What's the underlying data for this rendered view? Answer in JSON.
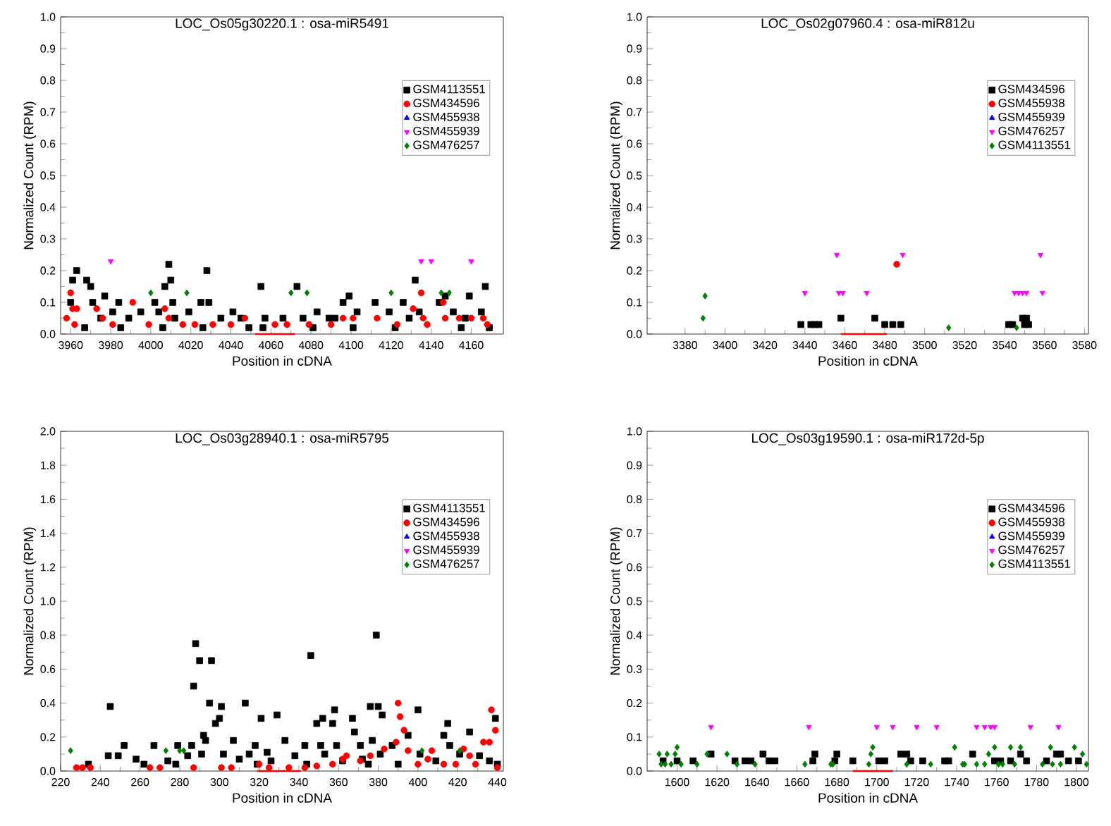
{
  "chart_data": [
    {
      "type": "scatter",
      "title": "LOC_Os05g30220.1 : osa-miR5491",
      "xlabel": "Position in cDNA",
      "ylabel": "Normalized Count (RPM)",
      "xlim": [
        3955,
        4176
      ],
      "ylim": [
        0,
        1.0
      ],
      "xticks": [
        3960,
        3980,
        4000,
        4020,
        4040,
        4060,
        4080,
        4100,
        4120,
        4140,
        4160
      ],
      "yticks": [
        {
          "value": 0,
          "label": "0.0"
        },
        {
          "value": 0.1,
          "label": "0.1"
        },
        {
          "value": 0.2,
          "label": "0.2"
        },
        {
          "value": 0.3,
          "label": "0.3"
        },
        {
          "value": 0.4,
          "label": "0.4"
        },
        {
          "value": 0.5,
          "label": "0.5"
        },
        {
          "value": 0.6,
          "label": "0.6"
        },
        {
          "value": 0.7,
          "label": "0.7"
        },
        {
          "value": 0.8,
          "label": "0.8"
        },
        {
          "value": 0.9,
          "label": "0.9"
        },
        {
          "value": 1.0,
          "label": "1.0"
        }
      ],
      "legend": "top right",
      "series": [
        {
          "type": "line",
          "color": "#ff0000",
          "marker": "none",
          "x": [
            4052,
            4072
          ],
          "values": [
            0,
            0
          ]
        },
        {
          "name": "GSM4113551",
          "color": "#000000",
          "marker": "square",
          "x": [
            3961,
            3963,
            3960,
            3968,
            3970,
            3971,
            3977,
            3981,
            3984,
            3989,
            3995,
            4002,
            4004,
            4007,
            4009,
            4010,
            4011,
            4019,
            4025,
            4028,
            4029,
            4035,
            4041,
            4049,
            4055,
            4057,
            4066,
            4073,
            4076,
            4083,
            4089,
            4096,
            4099,
            4103,
            4112,
            4119,
            4126,
            4132,
            4134,
            4144,
            4147,
            4151,
            4159,
            4165,
            4167,
            3967,
            3985,
            4006,
            4026,
            4056,
            4081,
            4101,
            4122,
            4155,
            4169,
            3975,
            4012,
            4045,
            4092,
            4129,
            4157
          ],
          "values": [
            0.17,
            0.2,
            0.1,
            0.17,
            0.15,
            0.1,
            0.12,
            0.07,
            0.1,
            0.05,
            0.07,
            0.1,
            0.07,
            0.15,
            0.22,
            0.17,
            0.1,
            0.07,
            0.1,
            0.2,
            0.1,
            0.05,
            0.07,
            0.02,
            0.15,
            0.05,
            0.05,
            0.15,
            0.05,
            0.07,
            0.05,
            0.1,
            0.12,
            0.07,
            0.1,
            0.07,
            0.1,
            0.17,
            0.07,
            0.1,
            0.12,
            0.07,
            0.12,
            0.07,
            0.15,
            0.02,
            0.02,
            0.02,
            0.02,
            0.02,
            0.02,
            0.02,
            0.02,
            0.02,
            0.02,
            0.05,
            0.05,
            0.05,
            0.05,
            0.05,
            0.05
          ]
        },
        {
          "name": "GSM434596",
          "color": "#ff0000",
          "marker": "circle",
          "x": [
            3960,
            3961,
            3963,
            3958,
            3962,
            3973,
            3976,
            3981,
            3991,
            3999,
            4007,
            4009,
            4016,
            4022,
            4031,
            4040,
            4047,
            4062,
            4068,
            4079,
            4090,
            4096,
            4101,
            4113,
            4123,
            4131,
            4135,
            4136,
            4138,
            4146,
            4147,
            4154,
            4160,
            4166,
            4168
          ],
          "values": [
            0.13,
            0.08,
            0.08,
            0.05,
            0.03,
            0.08,
            0.05,
            0.03,
            0.1,
            0.03,
            0.08,
            0.05,
            0.03,
            0.03,
            0.03,
            0.03,
            0.05,
            0.03,
            0.03,
            0.03,
            0.03,
            0.05,
            0.05,
            0.05,
            0.03,
            0.08,
            0.13,
            0.05,
            0.03,
            0.1,
            0.05,
            0.05,
            0.05,
            0.05,
            0.03
          ]
        },
        {
          "name": "GSM455938",
          "color": "#0000ff",
          "marker": "triangle"
        },
        {
          "name": "GSM455939",
          "color": "#ff00ff",
          "marker": "triangle-down",
          "x": [
            3980,
            4135,
            4140,
            4160
          ],
          "values": [
            0.23,
            0.23,
            0.23,
            0.23
          ]
        },
        {
          "name": "GSM476257",
          "color": "#008000",
          "marker": "diamond",
          "x": [
            4000,
            4018,
            4070,
            4078,
            4120,
            4145,
            4149
          ],
          "values": [
            0.13,
            0.13,
            0.13,
            0.13,
            0.13,
            0.13,
            0.13
          ]
        }
      ]
    },
    {
      "type": "scatter",
      "title": "LOC_Os02g07960.4 : osa-miR812u",
      "xlabel": "Position in cDNA",
      "ylabel": "Normalized Count (RPM)",
      "xlim": [
        3361,
        3582
      ],
      "ylim": [
        0,
        1.0
      ],
      "xticks": [
        3380,
        3400,
        3420,
        3440,
        3460,
        3480,
        3500,
        3520,
        3540,
        3560,
        3580
      ],
      "yticks": [
        {
          "value": 0,
          "label": "0.0"
        },
        {
          "value": 0.1,
          "label": "0.1"
        },
        {
          "value": 0.2,
          "label": "0.2"
        },
        {
          "value": 0.3,
          "label": "0.3"
        },
        {
          "value": 0.4,
          "label": "0.4"
        },
        {
          "value": 0.5,
          "label": "0.5"
        },
        {
          "value": 0.6,
          "label": "0.6"
        },
        {
          "value": 0.7,
          "label": "0.7"
        },
        {
          "value": 0.8,
          "label": "0.8"
        },
        {
          "value": 0.9,
          "label": "0.9"
        },
        {
          "value": 1.0,
          "label": "1.0"
        }
      ],
      "legend": "top right",
      "series": [
        {
          "type": "line",
          "color": "#ff0000",
          "marker": "none",
          "x": [
            3458,
            3481
          ],
          "values": [
            0,
            0
          ]
        },
        {
          "name": "GSM434596",
          "color": "#000000",
          "marker": "square",
          "x": [
            3438,
            3443,
            3445,
            3447,
            3458,
            3475,
            3480,
            3484,
            3488,
            3542,
            3544,
            3549,
            3551,
            3550,
            3552
          ],
          "values": [
            0.03,
            0.03,
            0.03,
            0.03,
            0.05,
            0.05,
            0.03,
            0.03,
            0.03,
            0.03,
            0.03,
            0.05,
            0.05,
            0.03,
            0.03
          ]
        },
        {
          "name": "GSM455938",
          "color": "#ff0000",
          "marker": "circle",
          "x": [
            3486
          ],
          "values": [
            0.22
          ]
        },
        {
          "name": "GSM455939",
          "color": "#0000ff",
          "marker": "triangle"
        },
        {
          "name": "GSM476257",
          "color": "#ff00ff",
          "marker": "triangle-down",
          "x": [
            3440,
            3456,
            3457,
            3459,
            3471,
            3489,
            3545,
            3547,
            3549,
            3551,
            3558,
            3559
          ],
          "values": [
            0.13,
            0.25,
            0.13,
            0.13,
            0.13,
            0.25,
            0.13,
            0.13,
            0.13,
            0.13,
            0.25,
            0.13
          ]
        },
        {
          "name": "GSM4113551",
          "color": "#008000",
          "marker": "diamond",
          "x": [
            3390,
            3389,
            3512,
            3546
          ],
          "values": [
            0.12,
            0.05,
            0.02,
            0.02
          ]
        }
      ]
    },
    {
      "type": "scatter",
      "title": "LOC_Os03g28940.1 : osa-miR5795",
      "xlabel": "Position in cDNA",
      "ylabel": "Normalized Count (RPM)",
      "xlim": [
        220,
        443
      ],
      "ylim": [
        0,
        2.0
      ],
      "xticks": [
        220,
        240,
        260,
        280,
        300,
        320,
        340,
        360,
        380,
        400,
        420,
        440
      ],
      "yticks": [
        {
          "value": 0,
          "label": "0.0"
        },
        {
          "value": 0.2,
          "label": "0.2"
        },
        {
          "value": 0.4,
          "label": "0.4"
        },
        {
          "value": 0.6,
          "label": "0.6"
        },
        {
          "value": 0.8,
          "label": "0.8"
        },
        {
          "value": 1.0,
          "label": "1.0"
        },
        {
          "value": 1.2,
          "label": "1.2"
        },
        {
          "value": 1.4,
          "label": "1.4"
        },
        {
          "value": 1.6,
          "label": "1.6"
        },
        {
          "value": 1.8,
          "label": "1.8"
        },
        {
          "value": 2.0,
          "label": "2.0"
        }
      ],
      "legend": "top right",
      "series": [
        {
          "type": "line",
          "color": "#ff0000",
          "marker": "none",
          "x": [
            319,
            341
          ],
          "values": [
            0,
            0
          ]
        },
        {
          "name": "GSM4113551",
          "color": "#000000",
          "marker": "square",
          "x": [
            288,
            290,
            296,
            287,
            346,
            379,
            245,
            295,
            301,
            313,
            321,
            329,
            298,
            300,
            349,
            352,
            357,
            358,
            367,
            368,
            376,
            380,
            382,
            400,
            415,
            426,
            439,
            292,
            293,
            307,
            333,
            343,
            252,
            267,
            279,
            286,
            318,
            324,
            351,
            359,
            371,
            377,
            387,
            395,
            413,
            416,
            234,
            244,
            249,
            258,
            262,
            274,
            284,
            291,
            302,
            310,
            315,
            326,
            338,
            344,
            353,
            362,
            372,
            381,
            390,
            401,
            409,
            421,
            431,
            436,
            440,
            278,
            319,
            375
          ],
          "values": [
            0.75,
            0.65,
            0.65,
            0.5,
            0.68,
            0.8,
            0.38,
            0.4,
            0.38,
            0.4,
            0.31,
            0.33,
            0.28,
            0.31,
            0.28,
            0.31,
            0.28,
            0.36,
            0.31,
            0.23,
            0.38,
            0.38,
            0.33,
            0.36,
            0.28,
            0.23,
            0.31,
            0.21,
            0.18,
            0.18,
            0.18,
            0.15,
            0.15,
            0.15,
            0.15,
            0.15,
            0.15,
            0.11,
            0.15,
            0.15,
            0.15,
            0.18,
            0.15,
            0.21,
            0.21,
            0.15,
            0.04,
            0.09,
            0.09,
            0.07,
            0.04,
            0.06,
            0.09,
            0.1,
            0.1,
            0.07,
            0.1,
            0.06,
            0.09,
            0.04,
            0.1,
            0.06,
            0.07,
            0.1,
            0.04,
            0.1,
            0.06,
            0.1,
            0.09,
            0.06,
            0.04,
            0.04,
            0.04,
            0.04
          ]
        },
        {
          "name": "GSM434596",
          "color": "#ff0000",
          "marker": "circle",
          "x": [
            228,
            231,
            235,
            265,
            270,
            287,
            301,
            306,
            320,
            325,
            335,
            343,
            349,
            357,
            362,
            364,
            371,
            376,
            383,
            390,
            391,
            393,
            389,
            395,
            400,
            405,
            407,
            413,
            419,
            423,
            426,
            429,
            433,
            436,
            437,
            439,
            440
          ],
          "values": [
            0.02,
            0.02,
            0.02,
            0.02,
            0.02,
            0.02,
            0.02,
            0.02,
            0.04,
            0.02,
            0.02,
            0.02,
            0.03,
            0.04,
            0.07,
            0.09,
            0.06,
            0.09,
            0.13,
            0.4,
            0.32,
            0.24,
            0.17,
            0.12,
            0.04,
            0.07,
            0.12,
            0.04,
            0.04,
            0.13,
            0.09,
            0.04,
            0.17,
            0.17,
            0.36,
            0.24,
            0.02
          ]
        },
        {
          "name": "GSM455938",
          "color": "#0000ff",
          "marker": "triangle"
        },
        {
          "name": "GSM455939",
          "color": "#ff00ff",
          "marker": "triangle-down"
        },
        {
          "name": "GSM476257",
          "color": "#008000",
          "marker": "diamond",
          "x": [
            225,
            273,
            280,
            282,
            402,
            421
          ],
          "values": [
            0.12,
            0.12,
            0.12,
            0.12,
            0.12,
            0.12
          ]
        }
      ]
    },
    {
      "type": "scatter",
      "title": "LOC_Os03g19590.1 : osa-miR172d-5p",
      "xlabel": "Position in cDNA",
      "ylabel": "Normalized Count (RPM)",
      "xlim": [
        1585,
        1806
      ],
      "ylim": [
        0,
        1.0
      ],
      "xticks": [
        1600,
        1620,
        1640,
        1660,
        1680,
        1700,
        1720,
        1740,
        1760,
        1780,
        1800
      ],
      "yticks": [
        {
          "value": 0,
          "label": "0.0"
        },
        {
          "value": 0.1,
          "label": "0.1"
        },
        {
          "value": 0.2,
          "label": "0.2"
        },
        {
          "value": 0.3,
          "label": "0.3"
        },
        {
          "value": 0.4,
          "label": "0.4"
        },
        {
          "value": 0.5,
          "label": "0.5"
        },
        {
          "value": 0.6,
          "label": "0.6"
        },
        {
          "value": 0.7,
          "label": "0.7"
        },
        {
          "value": 0.8,
          "label": "0.8"
        },
        {
          "value": 0.9,
          "label": "0.9"
        },
        {
          "value": 1.0,
          "label": "1.0"
        }
      ],
      "legend": "top right",
      "series": [
        {
          "type": "line",
          "color": "#ff0000",
          "marker": "none",
          "x": [
            1688,
            1708
          ],
          "values": [
            0,
            0
          ]
        },
        {
          "name": "GSM434596",
          "color": "#000000",
          "marker": "square",
          "x": [
            1593,
            1600,
            1608,
            1617,
            1629,
            1634,
            1637,
            1643,
            1646,
            1649,
            1669,
            1668,
            1679,
            1680,
            1688,
            1701,
            1704,
            1712,
            1715,
            1717,
            1723,
            1734,
            1736,
            1748,
            1759,
            1762,
            1767,
            1772,
            1775,
            1785,
            1790,
            1792,
            1796,
            1801
          ],
          "values": [
            0.03,
            0.03,
            0.03,
            0.05,
            0.03,
            0.03,
            0.03,
            0.05,
            0.03,
            0.03,
            0.05,
            0.03,
            0.03,
            0.05,
            0.03,
            0.03,
            0.03,
            0.05,
            0.05,
            0.03,
            0.03,
            0.03,
            0.03,
            0.05,
            0.03,
            0.03,
            0.03,
            0.05,
            0.03,
            0.03,
            0.05,
            0.05,
            0.03,
            0.03
          ]
        },
        {
          "name": "GSM455938",
          "color": "#ff0000",
          "marker": "circle"
        },
        {
          "name": "GSM455939",
          "color": "#0000ff",
          "marker": "triangle"
        },
        {
          "name": "GSM476257",
          "color": "#ff00ff",
          "marker": "triangle-down",
          "x": [
            1617,
            1666,
            1700,
            1708,
            1720,
            1730,
            1750,
            1754,
            1757,
            1759,
            1777,
            1791
          ],
          "values": [
            0.13,
            0.13,
            0.13,
            0.13,
            0.13,
            0.13,
            0.13,
            0.13,
            0.13,
            0.13,
            0.13,
            0.13
          ]
        },
        {
          "name": "GSM4113551",
          "color": "#008000",
          "marker": "diamond",
          "x": [
            1591,
            1592,
            1594,
            1597,
            1595,
            1599,
            1600,
            1602,
            1610,
            1615,
            1625,
            1630,
            1639,
            1664,
            1677,
            1678,
            1696,
            1697,
            1698,
            1715,
            1727,
            1739,
            1743,
            1744,
            1750,
            1754,
            1756,
            1759,
            1761,
            1767,
            1763,
            1769,
            1772,
            1783,
            1787,
            1788,
            1792,
            1799,
            1803,
            1805
          ],
          "values": [
            0.05,
            0.02,
            0.02,
            0.02,
            0.05,
            0.05,
            0.07,
            0.02,
            0.02,
            0.05,
            0.05,
            0.02,
            0.02,
            0.02,
            0.02,
            0.02,
            0.02,
            0.05,
            0.07,
            0.02,
            0.02,
            0.07,
            0.02,
            0.02,
            0.02,
            0.02,
            0.05,
            0.07,
            0.02,
            0.07,
            0.02,
            0.02,
            0.07,
            0.02,
            0.07,
            0.02,
            0.02,
            0.07,
            0.05,
            0.02
          ]
        }
      ]
    }
  ]
}
